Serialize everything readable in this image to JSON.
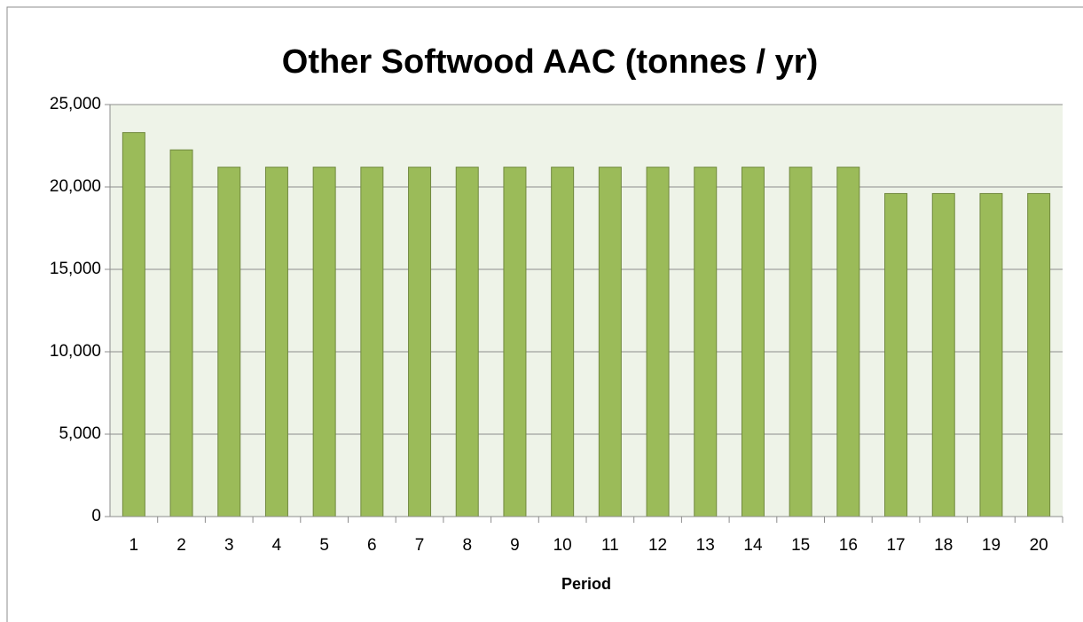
{
  "chart_data": {
    "type": "bar",
    "title": "Other Softwood AAC (tonnes / yr)",
    "x_label": "Period",
    "categories": [
      "1",
      "2",
      "3",
      "4",
      "5",
      "6",
      "7",
      "8",
      "9",
      "10",
      "11",
      "12",
      "13",
      "14",
      "15",
      "16",
      "17",
      "18",
      "19",
      "20"
    ],
    "values": [
      23300,
      22250,
      21200,
      21200,
      21200,
      21200,
      21200,
      21200,
      21200,
      21200,
      21200,
      21200,
      21200,
      21200,
      21200,
      21200,
      19600,
      19600,
      19600,
      19600
    ],
    "color": "#9bbb59",
    "ylim": [
      0,
      25000
    ],
    "yticks": [
      {
        "value": 0,
        "label": "0"
      },
      {
        "value": 5000,
        "label": "5,000"
      },
      {
        "value": 10000,
        "label": "10,000"
      },
      {
        "value": 15000,
        "label": "15,000"
      },
      {
        "value": 20000,
        "label": "20,000"
      },
      {
        "value": 25000,
        "label": "25,000"
      }
    ],
    "grid": true
  }
}
